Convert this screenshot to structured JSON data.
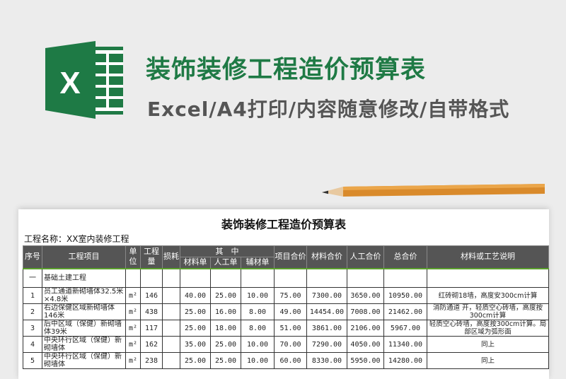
{
  "banner": {
    "title": "装饰装修工程造价预算表",
    "subtitle": "Excel/A4打印/内容随意修改/自带格式",
    "logo_letter": "X",
    "accent": "#1f7a45"
  },
  "sheet": {
    "title": "装饰装修工程造价预算表",
    "project_name": "工程名称：XX室内装修工程",
    "headers": {
      "seq": "序号",
      "item": "工程项目",
      "unit": "单位",
      "qty": "工程量",
      "loss": "损耗",
      "group": "其　中",
      "mat_unit": "材料单",
      "labor_unit": "人工单",
      "aux_unit": "辅材单",
      "item_total": "项目合价",
      "mat_total": "材料合价",
      "labor_total": "人工合价",
      "total": "总合价",
      "desc": "材料或工艺说明"
    },
    "section": {
      "seq": "一",
      "name": "基础土建工程"
    },
    "rows": [
      {
        "seq": "1",
        "item": "员工通道新砌墙体32.5米×4.8米",
        "unit": "m²",
        "qty": "146",
        "loss": "",
        "mat": "40.00",
        "labor": "25.00",
        "aux": "10.00",
        "item_total": "75.00",
        "mat_total": "7300.00",
        "labor_total": "3650.00",
        "total": "10950.00",
        "desc": "红砖砌18墙，高度安300cm计算"
      },
      {
        "seq": "2",
        "item": "右边保健区域新砌墙体146米",
        "unit": "m²",
        "qty": "438",
        "loss": "",
        "mat": "25.00",
        "labor": "16.00",
        "aux": "8.00",
        "item_total": "49.00",
        "mat_total": "14454.00",
        "labor_total": "7008.00",
        "total": "21462.00",
        "desc": "消防通道 开，轻质空心砖墙，高度按300cm计算"
      },
      {
        "seq": "3",
        "item": "后中区域（保健）新砌墙体39米",
        "unit": "m²",
        "qty": "117",
        "loss": "",
        "mat": "25.00",
        "labor": "18.00",
        "aux": "8.00",
        "item_total": "51.00",
        "mat_total": "3861.00",
        "labor_total": "2106.00",
        "total": "5967.00",
        "desc": "轻质空心砖墙，高度按300cm计算。局部区域为弧形面"
      },
      {
        "seq": "4",
        "item": "中央环行区域（保健）新砌墙体",
        "unit": "m²",
        "qty": "162",
        "loss": "",
        "mat": "35.00",
        "labor": "25.00",
        "aux": "10.00",
        "item_total": "70.00",
        "mat_total": "7290.00",
        "labor_total": "4050.00",
        "total": "11340.00",
        "desc": "同上"
      },
      {
        "seq": "5",
        "item": "中央环行区域（保健）新砌墙体",
        "unit": "m²",
        "qty": "238",
        "loss": "",
        "mat": "25.00",
        "labor": "25.00",
        "aux": "10.00",
        "item_total": "60.00",
        "mat_total": "8330.00",
        "labor_total": "5950.00",
        "total": "14280.00",
        "desc": "同上"
      }
    ]
  }
}
